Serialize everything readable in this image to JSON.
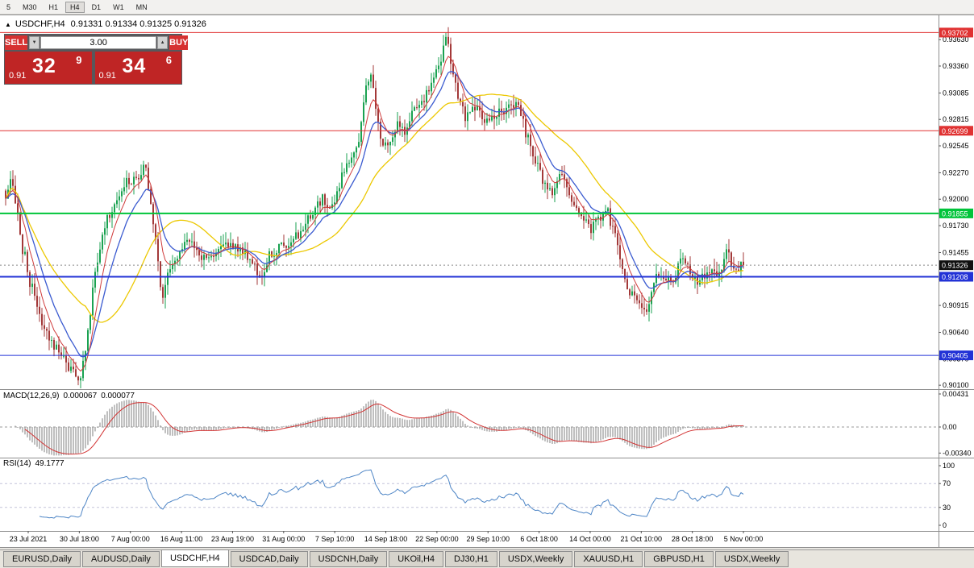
{
  "toolbar": {
    "timeframes": [
      "5",
      "M30",
      "H1",
      "H4",
      "D1",
      "W1",
      "MN"
    ],
    "active": "H4"
  },
  "chart": {
    "symbol": "USDCHF,H4",
    "ohlc": "0.91331 0.91334 0.91325 0.91326",
    "collapse_icon": "▲",
    "trade_panel": {
      "sell_label": "SELL",
      "buy_label": "BUY",
      "volume": "3.00",
      "spinner_down": "▼",
      "spinner_up": "▲",
      "sell_price": {
        "prefix": "0.91",
        "main": "32",
        "sup": "9"
      },
      "buy_price": {
        "prefix": "0.91",
        "main": "34",
        "sup": "6"
      }
    },
    "hlines": [
      {
        "price": 0.93702,
        "label": "0.93702",
        "color": "#e03232",
        "width": 1
      },
      {
        "price": 0.92699,
        "label": "0.92699",
        "color": "#e03232",
        "width": 1
      },
      {
        "price": 0.91855,
        "label": "0.91855",
        "color": "#00c43a",
        "width": 2
      },
      {
        "price": 0.91208,
        "label": "0.91208",
        "color": "#2232d6",
        "width": 2
      },
      {
        "price": 0.90405,
        "label": "0.90405",
        "color": "#2232d6",
        "width": 1
      }
    ],
    "current_price": {
      "label": "0.91326",
      "price": 0.91326,
      "tag_color": "#101010"
    }
  },
  "macd": {
    "name": "MACD(12,26,9)",
    "value1": "0.000067",
    "value2": "0.000077",
    "axis": [
      {
        "v": 0.00431,
        "label": "0.00431"
      },
      {
        "v": 0,
        "label": "0.00"
      },
      {
        "v": -0.0034,
        "label": "-0.00340"
      }
    ]
  },
  "rsi": {
    "name": "RSI(14)",
    "value": "49.1777",
    "axis": [
      {
        "v": 100,
        "label": "100"
      },
      {
        "v": 70,
        "label": "70"
      },
      {
        "v": 30,
        "label": "30"
      },
      {
        "v": 0,
        "label": "0"
      }
    ],
    "levels": [
      70,
      30
    ]
  },
  "tabs": {
    "items": [
      "EURUSD,Daily",
      "AUDUSD,Daily",
      "USDCHF,H4",
      "USDCAD,Daily",
      "USDCNH,Daily",
      "UKOil,H4",
      "DJ30,H1",
      "USDX,Weekly",
      "XAUUSD,H1",
      "GBPUSD,H1",
      "USDX,Weekly"
    ],
    "active_index": 2
  },
  "chart_data": {
    "type": "candlestick",
    "symbol": "USDCHF",
    "timeframe": "H4",
    "title": "USDCHF,H4",
    "ohlc_current": {
      "open": 0.91331,
      "high": 0.91334,
      "low": 0.91325,
      "close": 0.91326
    },
    "ylim": [
      0.9006,
      0.9387
    ],
    "price_axis_ticks": [
      0.9363,
      0.9336,
      0.93085,
      0.92815,
      0.92545,
      0.9227,
      0.92,
      0.9173,
      0.91455,
      0.91185,
      0.90915,
      0.9064,
      0.9037,
      0.901
    ],
    "x_labels": [
      "23 Jul 2021",
      "30 Jul 18:00",
      "7 Aug 00:00",
      "16 Aug 11:00",
      "23 Aug 19:00",
      "31 Aug 00:00",
      "7 Sep 10:00",
      "14 Sep 18:00",
      "22 Sep 00:00",
      "29 Sep 10:00",
      "6 Oct 18:00",
      "14 Oct 00:00",
      "21 Oct 10:00",
      "28 Oct 18:00",
      "5 Nov 00:00"
    ],
    "moving_average_colors": [
      "#ecc800",
      "#3b5bd0",
      "#cf3a3a"
    ],
    "price_keypoints": [
      [
        0.0,
        0.92
      ],
      [
        0.008,
        0.9225
      ],
      [
        0.02,
        0.916
      ],
      [
        0.035,
        0.911
      ],
      [
        0.05,
        0.9075
      ],
      [
        0.07,
        0.9045
      ],
      [
        0.09,
        0.9025
      ],
      [
        0.1,
        0.9018
      ],
      [
        0.108,
        0.9045
      ],
      [
        0.118,
        0.911
      ],
      [
        0.135,
        0.9175
      ],
      [
        0.155,
        0.921
      ],
      [
        0.175,
        0.9222
      ],
      [
        0.19,
        0.923
      ],
      [
        0.2,
        0.918
      ],
      [
        0.212,
        0.91
      ],
      [
        0.22,
        0.9125
      ],
      [
        0.235,
        0.915
      ],
      [
        0.25,
        0.9158
      ],
      [
        0.262,
        0.9142
      ],
      [
        0.275,
        0.9138
      ],
      [
        0.29,
        0.9152
      ],
      [
        0.305,
        0.9158
      ],
      [
        0.32,
        0.9148
      ],
      [
        0.335,
        0.9132
      ],
      [
        0.348,
        0.9118
      ],
      [
        0.36,
        0.9145
      ],
      [
        0.372,
        0.915
      ],
      [
        0.385,
        0.9152
      ],
      [
        0.4,
        0.9168
      ],
      [
        0.415,
        0.9182
      ],
      [
        0.428,
        0.92
      ],
      [
        0.44,
        0.9192
      ],
      [
        0.452,
        0.9212
      ],
      [
        0.465,
        0.9238
      ],
      [
        0.478,
        0.9258
      ],
      [
        0.488,
        0.9312
      ],
      [
        0.495,
        0.933
      ],
      [
        0.503,
        0.9285
      ],
      [
        0.513,
        0.9252
      ],
      [
        0.523,
        0.9258
      ],
      [
        0.533,
        0.9278
      ],
      [
        0.543,
        0.9272
      ],
      [
        0.553,
        0.9288
      ],
      [
        0.565,
        0.9302
      ],
      [
        0.578,
        0.932
      ],
      [
        0.59,
        0.9345
      ],
      [
        0.598,
        0.9365
      ],
      [
        0.606,
        0.933
      ],
      [
        0.615,
        0.9302
      ],
      [
        0.625,
        0.9282
      ],
      [
        0.635,
        0.9292
      ],
      [
        0.645,
        0.9288
      ],
      [
        0.655,
        0.9278
      ],
      [
        0.665,
        0.9285
      ],
      [
        0.675,
        0.9295
      ],
      [
        0.685,
        0.9302
      ],
      [
        0.695,
        0.9292
      ],
      [
        0.705,
        0.9268
      ],
      [
        0.715,
        0.9248
      ],
      [
        0.725,
        0.9232
      ],
      [
        0.735,
        0.9202
      ],
      [
        0.745,
        0.9218
      ],
      [
        0.755,
        0.9228
      ],
      [
        0.765,
        0.9202
      ],
      [
        0.775,
        0.9188
      ],
      [
        0.785,
        0.9182
      ],
      [
        0.795,
        0.9172
      ],
      [
        0.805,
        0.9182
      ],
      [
        0.815,
        0.9188
      ],
      [
        0.825,
        0.9162
      ],
      [
        0.835,
        0.9132
      ],
      [
        0.845,
        0.9108
      ],
      [
        0.858,
        0.9094
      ],
      [
        0.868,
        0.9088
      ],
      [
        0.878,
        0.9112
      ],
      [
        0.888,
        0.9122
      ],
      [
        0.898,
        0.9115
      ],
      [
        0.908,
        0.9122
      ],
      [
        0.918,
        0.9145
      ],
      [
        0.928,
        0.9122
      ],
      [
        0.938,
        0.9112
      ],
      [
        0.948,
        0.912
      ],
      [
        0.958,
        0.9128
      ],
      [
        0.968,
        0.9122
      ],
      [
        0.978,
        0.9152
      ],
      [
        0.988,
        0.9128
      ],
      [
        1.0,
        0.91326
      ]
    ],
    "indicators": {
      "macd": {
        "params": "12,26,9",
        "values": [
          6.7e-05,
          7.7e-05
        ],
        "y_axis": [
          0.00431,
          0,
          -0.0034
        ]
      },
      "rsi": {
        "params": "14",
        "value": 49.1777,
        "y_axis": [
          100,
          70,
          30,
          0
        ],
        "levels": [
          70,
          30
        ]
      }
    }
  }
}
